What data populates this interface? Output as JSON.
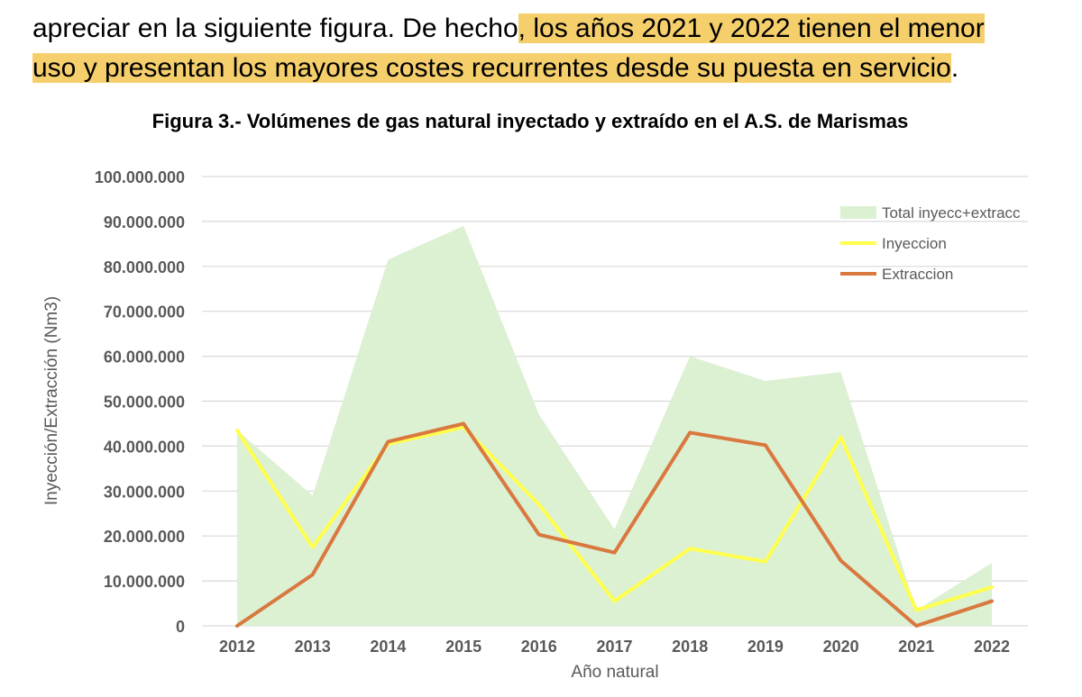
{
  "document": {
    "intro_part1": "apreciar en la siguiente figura. De hecho",
    "intro_highlight1": ", los años 2021 y 2022 tienen el menor",
    "intro_highlight2": "uso y presentan los mayores costes recurrentes desde su puesta en servicio",
    "intro_end": "."
  },
  "chart_data": {
    "type": "line",
    "title": "Figura 3.- Volúmenes de gas natural inyectado y extraído en el A.S. de Marismas",
    "xlabel": "Año natural",
    "ylabel": "Inyección/Extracción (Nm3)",
    "categories": [
      "2012",
      "2013",
      "2014",
      "2015",
      "2016",
      "2017",
      "2018",
      "2019",
      "2020",
      "2021",
      "2022"
    ],
    "ylim": [
      0,
      100000000
    ],
    "ytick_step": 10000000,
    "ytick_labels": [
      "0",
      "10.000.000",
      "20.000.000",
      "30.000.000",
      "40.000.000",
      "50.000.000",
      "60.000.000",
      "70.000.000",
      "80.000.000",
      "90.000.000",
      "100.000.000"
    ],
    "grid": true,
    "legend_position": "top-right",
    "series": [
      {
        "name": "Total inyecc+extracc",
        "kind": "area",
        "color": "#dcf0d2",
        "values": [
          43500000,
          29000000,
          81500000,
          89000000,
          47000000,
          21500000,
          60000000,
          54500000,
          56500000,
          3500000,
          14000000
        ]
      },
      {
        "name": "Inyeccion",
        "kind": "line",
        "color": "#ffff4d",
        "values": [
          43500000,
          17500000,
          40500000,
          44200000,
          27000000,
          5500000,
          17200000,
          14300000,
          42000000,
          3500000,
          8600000
        ]
      },
      {
        "name": "Extraccion",
        "kind": "line",
        "color": "#d9783f",
        "values": [
          0,
          11400000,
          41000000,
          45000000,
          20300000,
          16300000,
          43000000,
          40200000,
          14500000,
          0,
          5500000
        ]
      }
    ]
  }
}
